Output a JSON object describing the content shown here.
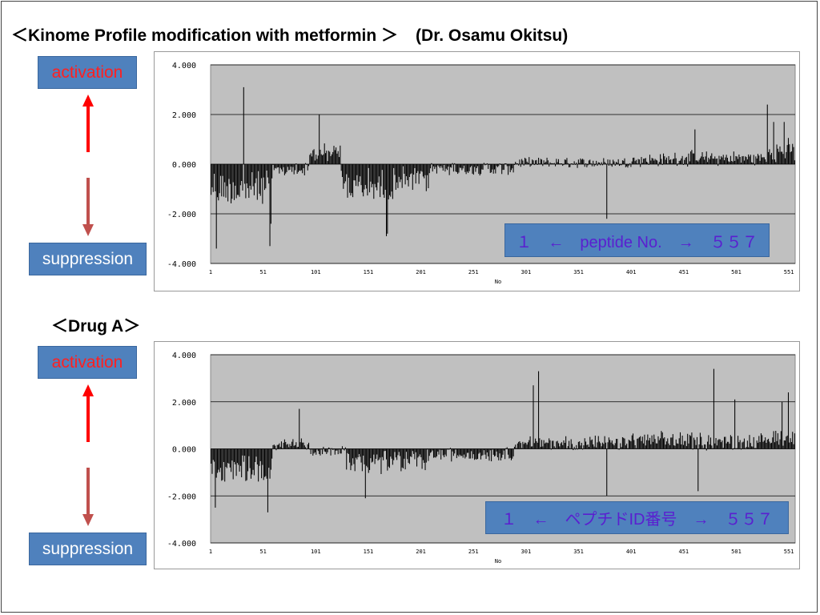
{
  "slide": {
    "title": "＜Kinome Profile modification with metformin ＞",
    "author": "(Dr. Osamu Okitsu)",
    "section_title": "＜Drug A＞"
  },
  "colors": {
    "box_fill": "#4f81bd",
    "activation_text": "#ff2020",
    "suppression_text": "#ffffff",
    "legend_text": "#5a1fd0",
    "plot_bg": "#c0c0c0",
    "bar": "#000000",
    "arrow_bright": "#ff0000",
    "arrow_dull": "#c0504d"
  },
  "panels": [
    {
      "activation_label": "activation",
      "suppression_label": "suppression",
      "legend_text": "１　←　peptide No.　→　５５７"
    },
    {
      "activation_label": "activation",
      "suppression_label": "suppression",
      "legend_text": "１　←　ペプチドID番号　→　５５７"
    }
  ],
  "chart_data": [
    {
      "type": "bar",
      "xlabel": "No",
      "ylabel": "",
      "ylim": [
        -4,
        4
      ],
      "yticks": [
        "4.000",
        "2.000",
        "0.000",
        "-2.000",
        "-4.000"
      ],
      "xticks": [
        "1",
        "51",
        "101",
        "151",
        "201",
        "251",
        "301",
        "351",
        "401",
        "451",
        "501",
        "551"
      ],
      "n_peptides": 557,
      "grid": true,
      "highlight_values": [
        {
          "x": 6,
          "y": -3.4
        },
        {
          "x": 32,
          "y": 3.1
        },
        {
          "x": 57,
          "y": -3.3
        },
        {
          "x": 58,
          "y": -2.4
        },
        {
          "x": 104,
          "y": 2.0
        },
        {
          "x": 168,
          "y": -2.9
        },
        {
          "x": 169,
          "y": -2.8
        },
        {
          "x": 378,
          "y": -2.2
        },
        {
          "x": 462,
          "y": 1.4
        },
        {
          "x": 531,
          "y": 2.4
        },
        {
          "x": 537,
          "y": 1.7
        },
        {
          "x": 547,
          "y": 1.7
        }
      ]
    },
    {
      "type": "bar",
      "xlabel": "No",
      "ylabel": "",
      "ylim": [
        -4,
        4
      ],
      "yticks": [
        "4.000",
        "2.000",
        "0.000",
        "-2.000",
        "-4.000"
      ],
      "xticks": [
        "1",
        "51",
        "101",
        "151",
        "201",
        "251",
        "301",
        "351",
        "401",
        "451",
        "501",
        "551"
      ],
      "n_peptides": 557,
      "grid": true,
      "highlight_values": [
        {
          "x": 5,
          "y": -2.5
        },
        {
          "x": 55,
          "y": -2.7
        },
        {
          "x": 85,
          "y": 1.7
        },
        {
          "x": 148,
          "y": -2.1
        },
        {
          "x": 308,
          "y": 2.7
        },
        {
          "x": 313,
          "y": 3.3
        },
        {
          "x": 378,
          "y": -2.0
        },
        {
          "x": 465,
          "y": -1.8
        },
        {
          "x": 480,
          "y": 3.4
        },
        {
          "x": 500,
          "y": 2.1
        },
        {
          "x": 545,
          "y": 2.0
        },
        {
          "x": 551,
          "y": 2.4
        }
      ]
    }
  ]
}
